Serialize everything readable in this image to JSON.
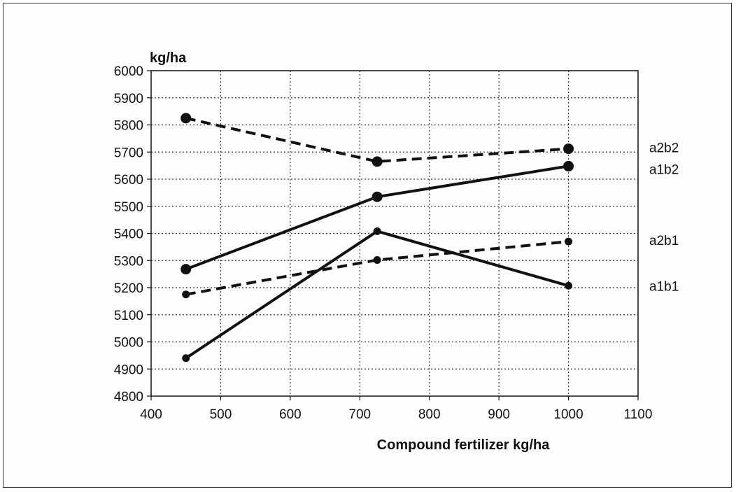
{
  "chart_data": {
    "type": "line",
    "title": "",
    "xlabel": "Compound fertilizer kg/ha",
    "ylabel": "kg/ha",
    "xlim": [
      400,
      1100
    ],
    "ylim": [
      4800,
      6000
    ],
    "x_ticks": [
      400,
      500,
      600,
      700,
      800,
      900,
      1000,
      1100
    ],
    "y_ticks": [
      4800,
      4900,
      5000,
      5100,
      5200,
      5300,
      5400,
      5500,
      5600,
      5700,
      5800,
      5900,
      6000
    ],
    "grid": true,
    "legend": "end-of-line labels at right",
    "series": [
      {
        "name": "a2b2",
        "style": "dashed",
        "marker": "large",
        "x": [
          450,
          725,
          1000
        ],
        "y": [
          5825,
          5665,
          5712
        ]
      },
      {
        "name": "a1b2",
        "style": "solid",
        "marker": "large",
        "x": [
          450,
          725,
          1000
        ],
        "y": [
          5268,
          5535,
          5648
        ]
      },
      {
        "name": "a2b1",
        "style": "dashed",
        "marker": "small",
        "x": [
          450,
          725,
          1000
        ],
        "y": [
          5175,
          5302,
          5370
        ]
      },
      {
        "name": "a1b1",
        "style": "solid",
        "marker": "small",
        "x": [
          450,
          725,
          1000
        ],
        "y": [
          4940,
          5408,
          5207
        ]
      }
    ],
    "line_color": "#111111"
  }
}
